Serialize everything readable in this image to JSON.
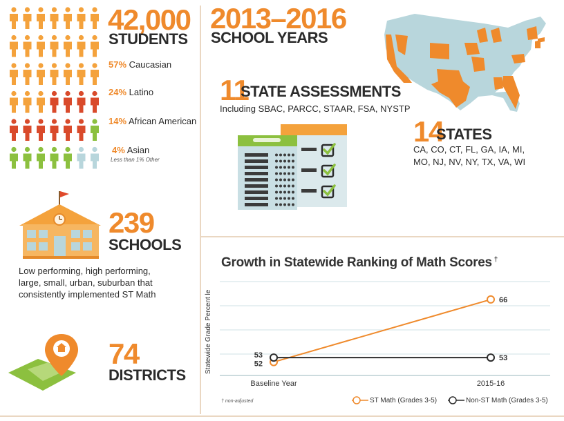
{
  "students": {
    "count": "42,000",
    "label": "STUDENTS",
    "breakdown": [
      {
        "pct": "57%",
        "label": "Caucasian"
      },
      {
        "pct": "24%",
        "label": "Latino"
      },
      {
        "pct": "14%",
        "label": "African American"
      },
      {
        "pct": "4%",
        "label": "Asian"
      }
    ],
    "other_note": "Less than 1% Other",
    "colors": {
      "orange": "#f4a23c",
      "red": "#d94a2b",
      "green": "#8cc03f",
      "lightblue": "#b8d6dc"
    }
  },
  "schools": {
    "count": "239",
    "label": "SCHOOLS",
    "description": "Low performing, high performing, large, small, urban, suburban that consistently implemented ST Math"
  },
  "districts": {
    "count": "74",
    "label": "DISTRICTS"
  },
  "years": {
    "range": "2013–2016",
    "label": "SCHOOL YEARS"
  },
  "assessments": {
    "count": "11",
    "label": "STATE ASSESSMENTS",
    "detail": "Including SBAC, PARCC, STAAR, FSA, NYSTP"
  },
  "states": {
    "count": "14",
    "label": "STATES",
    "list_line1": "CA, CO, CT, FL, GA, IA, MI,",
    "list_line2": "MO, NJ, NV, NY, TX, VA, WI"
  },
  "chart_data": {
    "type": "line",
    "title": "Growth in Statewide Ranking of Math Scores",
    "title_mark": "†",
    "ylabel": "Statewide Grade Percent le",
    "categories": [
      "Baseline Year",
      "2015-16"
    ],
    "series": [
      {
        "name": "ST Math (Grades 3-5)",
        "values": [
          52,
          66
        ],
        "color": "#ef8a2c"
      },
      {
        "name": "Non-ST Math (Grades 3-5)",
        "values": [
          53,
          53
        ],
        "color": "#2b2b2b"
      }
    ],
    "ylim": [
      49,
      70
    ],
    "grid": true,
    "legend": "bottom",
    "footnote": "† non-adjusted"
  }
}
